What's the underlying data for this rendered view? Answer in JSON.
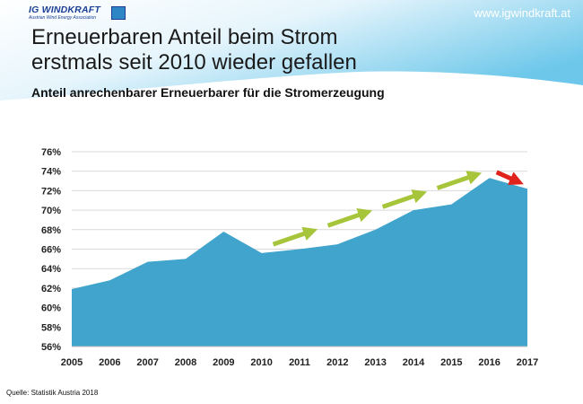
{
  "header": {
    "logo_name": "IG WINDKRAFT",
    "logo_subtitle": "Austrian Wind Energy Association",
    "url": "www.igwindkraft.at",
    "title_line1": "Erneuerbaren Anteil beim Strom",
    "title_line2": "erstmals seit 2010 wieder gefallen",
    "subtitle": "Anteil anrechenbarer Erneuerbarer für die Stromerzeugung"
  },
  "footer": {
    "source": "Quelle: Statistik Austria 2018"
  },
  "colors": {
    "area_fill": "#41a4cc",
    "trend_arrow": "#a7c53a",
    "decline_arrow": "#e0231c",
    "header_gradient_start": "#ffffff",
    "header_gradient_end": "#6cc7ea"
  },
  "chart_data": {
    "type": "area",
    "title": "Anteil anrechenbarer Erneuerbarer für die Stromerzeugung",
    "xlabel": "",
    "ylabel": "",
    "categories": [
      "2005",
      "2006",
      "2007",
      "2008",
      "2009",
      "2010",
      "2011",
      "2012",
      "2013",
      "2014",
      "2015",
      "2016",
      "2017"
    ],
    "values": [
      61.9,
      62.8,
      64.7,
      65.0,
      67.8,
      65.6,
      66.0,
      66.5,
      68.0,
      70.0,
      70.6,
      73.3,
      72.2
    ],
    "ylim": [
      56,
      76
    ],
    "yticks": [
      56,
      58,
      60,
      62,
      64,
      66,
      68,
      70,
      72,
      74,
      76
    ],
    "ytick_labels": [
      "56%",
      "58%",
      "60%",
      "62%",
      "64%",
      "66%",
      "68%",
      "70%",
      "72%",
      "74%",
      "76%"
    ],
    "grid": true,
    "legend": "none",
    "annotations": [
      {
        "kind": "rising-trend-arrow",
        "from_index": 5,
        "to_index": 11,
        "y_from": 66.4,
        "y_to": 74.1
      },
      {
        "kind": "declining-arrow",
        "from_index": 11,
        "to_index": 12,
        "y_from": 73.9,
        "y_to": 72.9
      }
    ]
  }
}
